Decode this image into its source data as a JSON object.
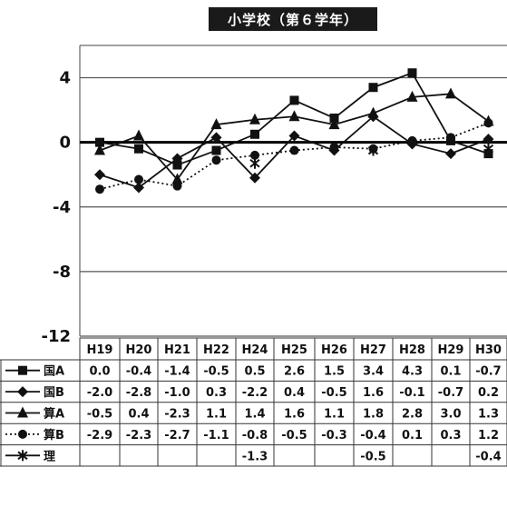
{
  "chart_data": {
    "type": "line",
    "title": "小学校（第６学年）",
    "categories": [
      "H19",
      "H20",
      "H21",
      "H22",
      "H24",
      "H25",
      "H26",
      "H27",
      "H28",
      "H29",
      "H30"
    ],
    "yticks": [
      4,
      0,
      -4,
      -8,
      -12
    ],
    "ylim": [
      -12,
      6
    ],
    "grid": true,
    "legend": "table-left",
    "series": [
      {
        "name": "国A",
        "marker": "square",
        "dash": "solid",
        "values": [
          0.0,
          -0.4,
          -1.4,
          -0.5,
          0.5,
          2.6,
          1.5,
          3.4,
          4.3,
          0.1,
          -0.7
        ]
      },
      {
        "name": "国B",
        "marker": "diamond",
        "dash": "solid",
        "values": [
          -2.0,
          -2.8,
          -1.0,
          0.3,
          -2.2,
          0.4,
          -0.5,
          1.6,
          -0.1,
          -0.7,
          0.2
        ]
      },
      {
        "name": "算A",
        "marker": "triangle",
        "dash": "solid",
        "values": [
          -0.5,
          0.4,
          -2.3,
          1.1,
          1.4,
          1.6,
          1.1,
          1.8,
          2.8,
          3.0,
          1.3
        ]
      },
      {
        "name": "算B",
        "marker": "circle",
        "dash": "dotted",
        "values": [
          -2.9,
          -2.3,
          -2.7,
          -1.1,
          -0.8,
          -0.5,
          -0.3,
          -0.4,
          0.1,
          0.3,
          1.2
        ]
      },
      {
        "name": "理",
        "marker": "asterisk",
        "dash": "solid",
        "values": [
          null,
          null,
          null,
          null,
          -1.3,
          null,
          null,
          -0.5,
          null,
          null,
          -0.4
        ]
      }
    ]
  }
}
